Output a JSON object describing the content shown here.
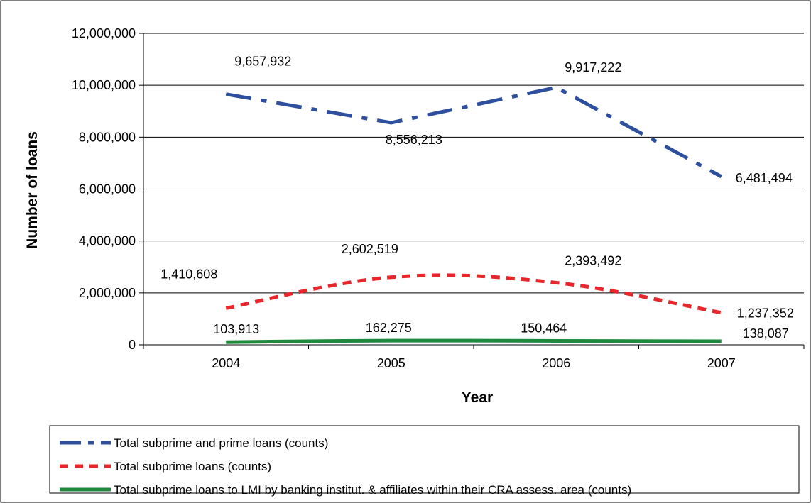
{
  "chart_data": {
    "type": "line",
    "xlabel": "Year",
    "ylabel": "Number of loans",
    "categories": [
      "2004",
      "2005",
      "2006",
      "2007"
    ],
    "ylim": [
      0,
      12000000
    ],
    "yticks": [
      0,
      2000000,
      4000000,
      6000000,
      8000000,
      10000000,
      12000000
    ],
    "ytick_labels": [
      "0",
      "2,000,000",
      "4,000,000",
      "6,000,000",
      "8,000,000",
      "10,000,000",
      "12,000,000"
    ],
    "grid": true,
    "legend_position": "bottom",
    "series": [
      {
        "name": "Total subprime and prime loans (counts)",
        "values": [
          9657932,
          8556213,
          9917222,
          6481494
        ],
        "labels": [
          "9,657,932",
          "8,556,213",
          "9,917,222",
          "6,481,494"
        ],
        "color": "#2e4f9e",
        "style": "dash-dot"
      },
      {
        "name": "Total subprime loans (counts)",
        "values": [
          1410608,
          2602519,
          2393492,
          1237352
        ],
        "labels": [
          "1,410,608",
          "2,602,519",
          "2,393,492",
          "1,237,352"
        ],
        "color": "#e8262b",
        "style": "dotted"
      },
      {
        "name": "Total subprime loans to LMI by banking institut. & affiliates within their CRA assess. area (counts)",
        "values": [
          103913,
          162275,
          150464,
          138087
        ],
        "labels": [
          "103,913",
          "162,275",
          "150,464",
          "138,087"
        ],
        "color": "#1f8a3e",
        "style": "solid"
      }
    ]
  }
}
